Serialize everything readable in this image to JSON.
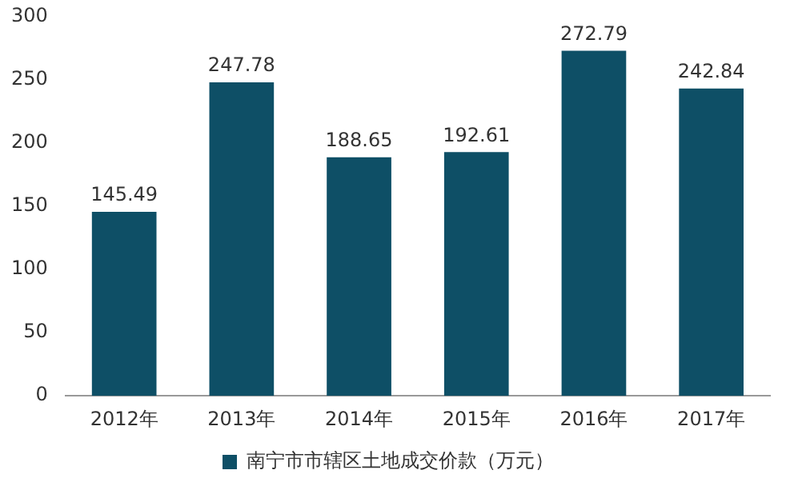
{
  "chart_data": {
    "type": "bar",
    "categories": [
      "2012年",
      "2013年",
      "2014年",
      "2015年",
      "2016年",
      "2017年"
    ],
    "series": [
      {
        "name": "南宁市市辖区土地成交价款（万元）",
        "color": "#0e4f66",
        "values": [
          145.49,
          247.78,
          188.65,
          192.61,
          272.79,
          242.84
        ]
      }
    ],
    "ylim": [
      0,
      300
    ],
    "yticks": [
      0,
      50,
      100,
      150,
      200,
      250,
      300
    ],
    "grid": false,
    "legend": "bottom",
    "data_labels": true
  }
}
